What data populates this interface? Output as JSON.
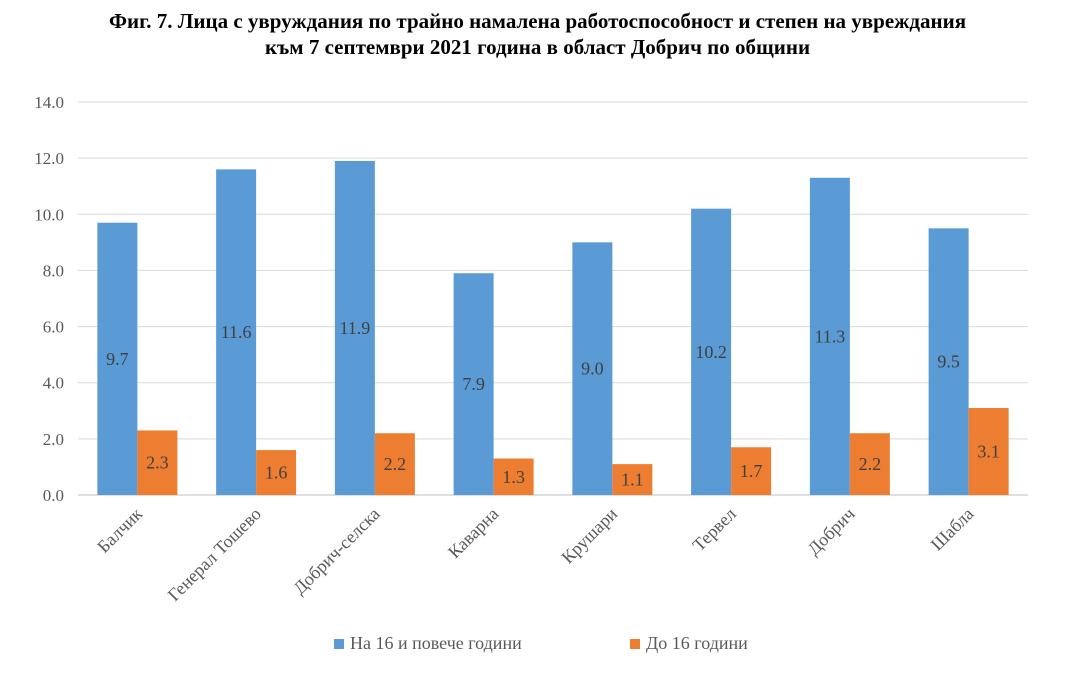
{
  "title_line1": "Фиг. 7. Лица с увруждания  по трайно намалена работоспособност и степен на увреждания",
  "title_line2": "към 7 септември 2021 година в област Добрич по общини",
  "chart_data": {
    "type": "bar",
    "categories": [
      "Балчик",
      "Генерал Тошево",
      "Добрич-селска",
      "Каварна",
      "Крушари",
      "Тервел",
      "Добрич",
      "Шабла"
    ],
    "series": [
      {
        "name": "На 16 и повече години",
        "values": [
          9.7,
          11.6,
          11.9,
          7.9,
          9.0,
          10.2,
          11.3,
          9.5
        ],
        "color": "#5b9bd5"
      },
      {
        "name": "До 16 години",
        "values": [
          2.3,
          1.6,
          2.2,
          1.3,
          1.1,
          1.7,
          2.2,
          3.1
        ],
        "color": "#ed7d31"
      }
    ],
    "ylim": [
      0,
      14
    ],
    "yticks": [
      "0.0",
      "2.0",
      "4.0",
      "6.0",
      "8.0",
      "10.0",
      "12.0",
      "14.0"
    ],
    "grid": true,
    "legend": "bottom",
    "xlabel": "",
    "ylabel": ""
  }
}
